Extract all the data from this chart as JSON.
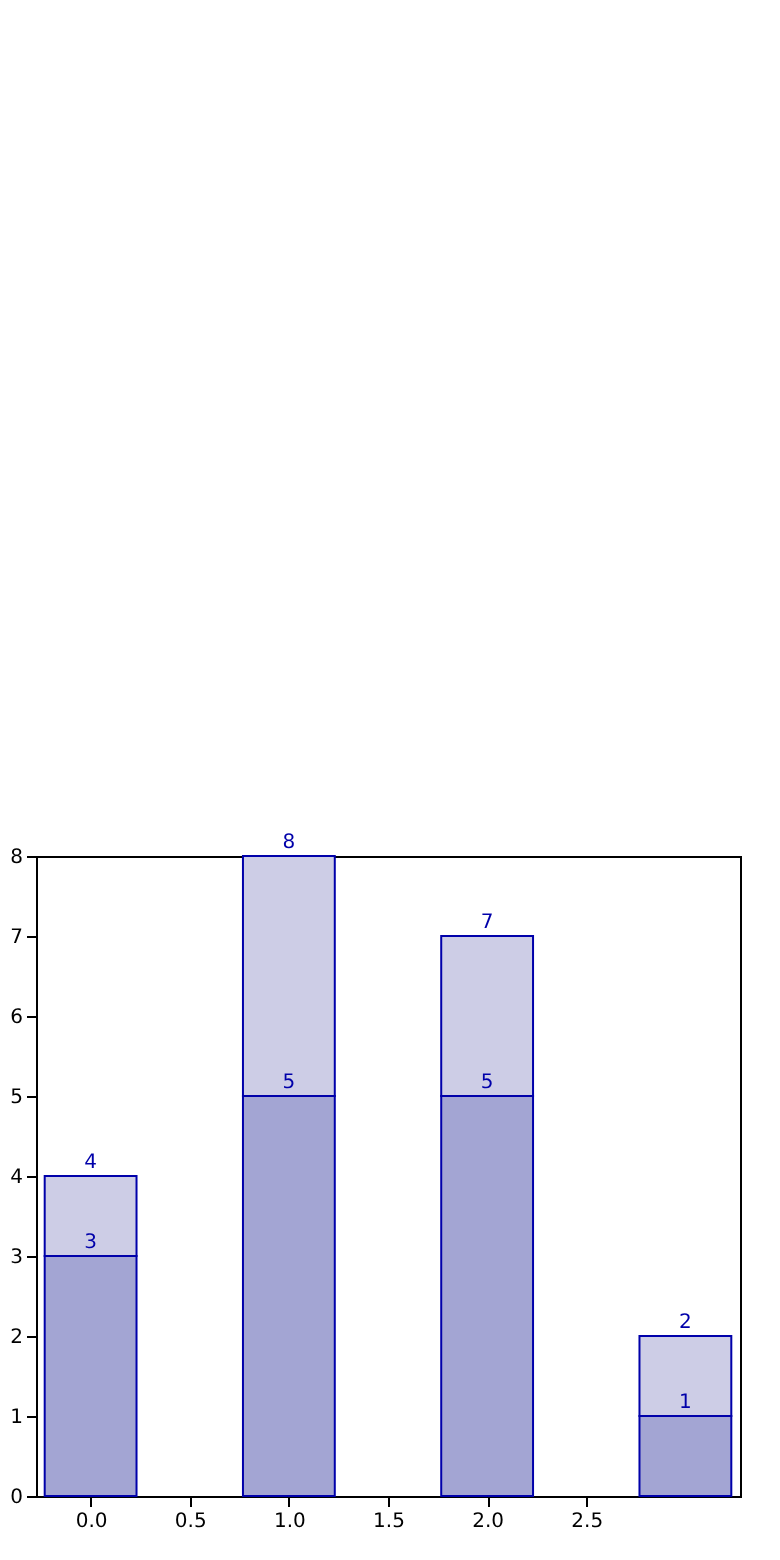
{
  "chart_data": {
    "type": "bar",
    "stacked": true,
    "x": [
      0,
      1,
      2,
      3
    ],
    "series": [
      {
        "color": "#a3a5d3",
        "values": [
          3,
          5,
          5,
          1
        ],
        "value_labels": [
          "3",
          "5",
          "5",
          "1"
        ]
      },
      {
        "color": "#cdcde6",
        "values": [
          1,
          3,
          2,
          1
        ]
      }
    ],
    "totals": [
      "4",
      "8",
      "7",
      "2"
    ],
    "xlim": [
      -0.225,
      3.225
    ],
    "xticks": [
      {
        "value": 0,
        "label": "0.0"
      },
      {
        "value": 0.5,
        "label": "0.5"
      },
      {
        "value": 1,
        "label": "1.0"
      },
      {
        "value": 1.5,
        "label": "1.5"
      },
      {
        "value": 2,
        "label": "2.0"
      },
      {
        "value": 2.5,
        "label": "2.5"
      }
    ],
    "ylim": [
      0,
      8
    ],
    "yticks": [
      0,
      1,
      2,
      3,
      4,
      5,
      6,
      7,
      8
    ],
    "grid": false
  }
}
